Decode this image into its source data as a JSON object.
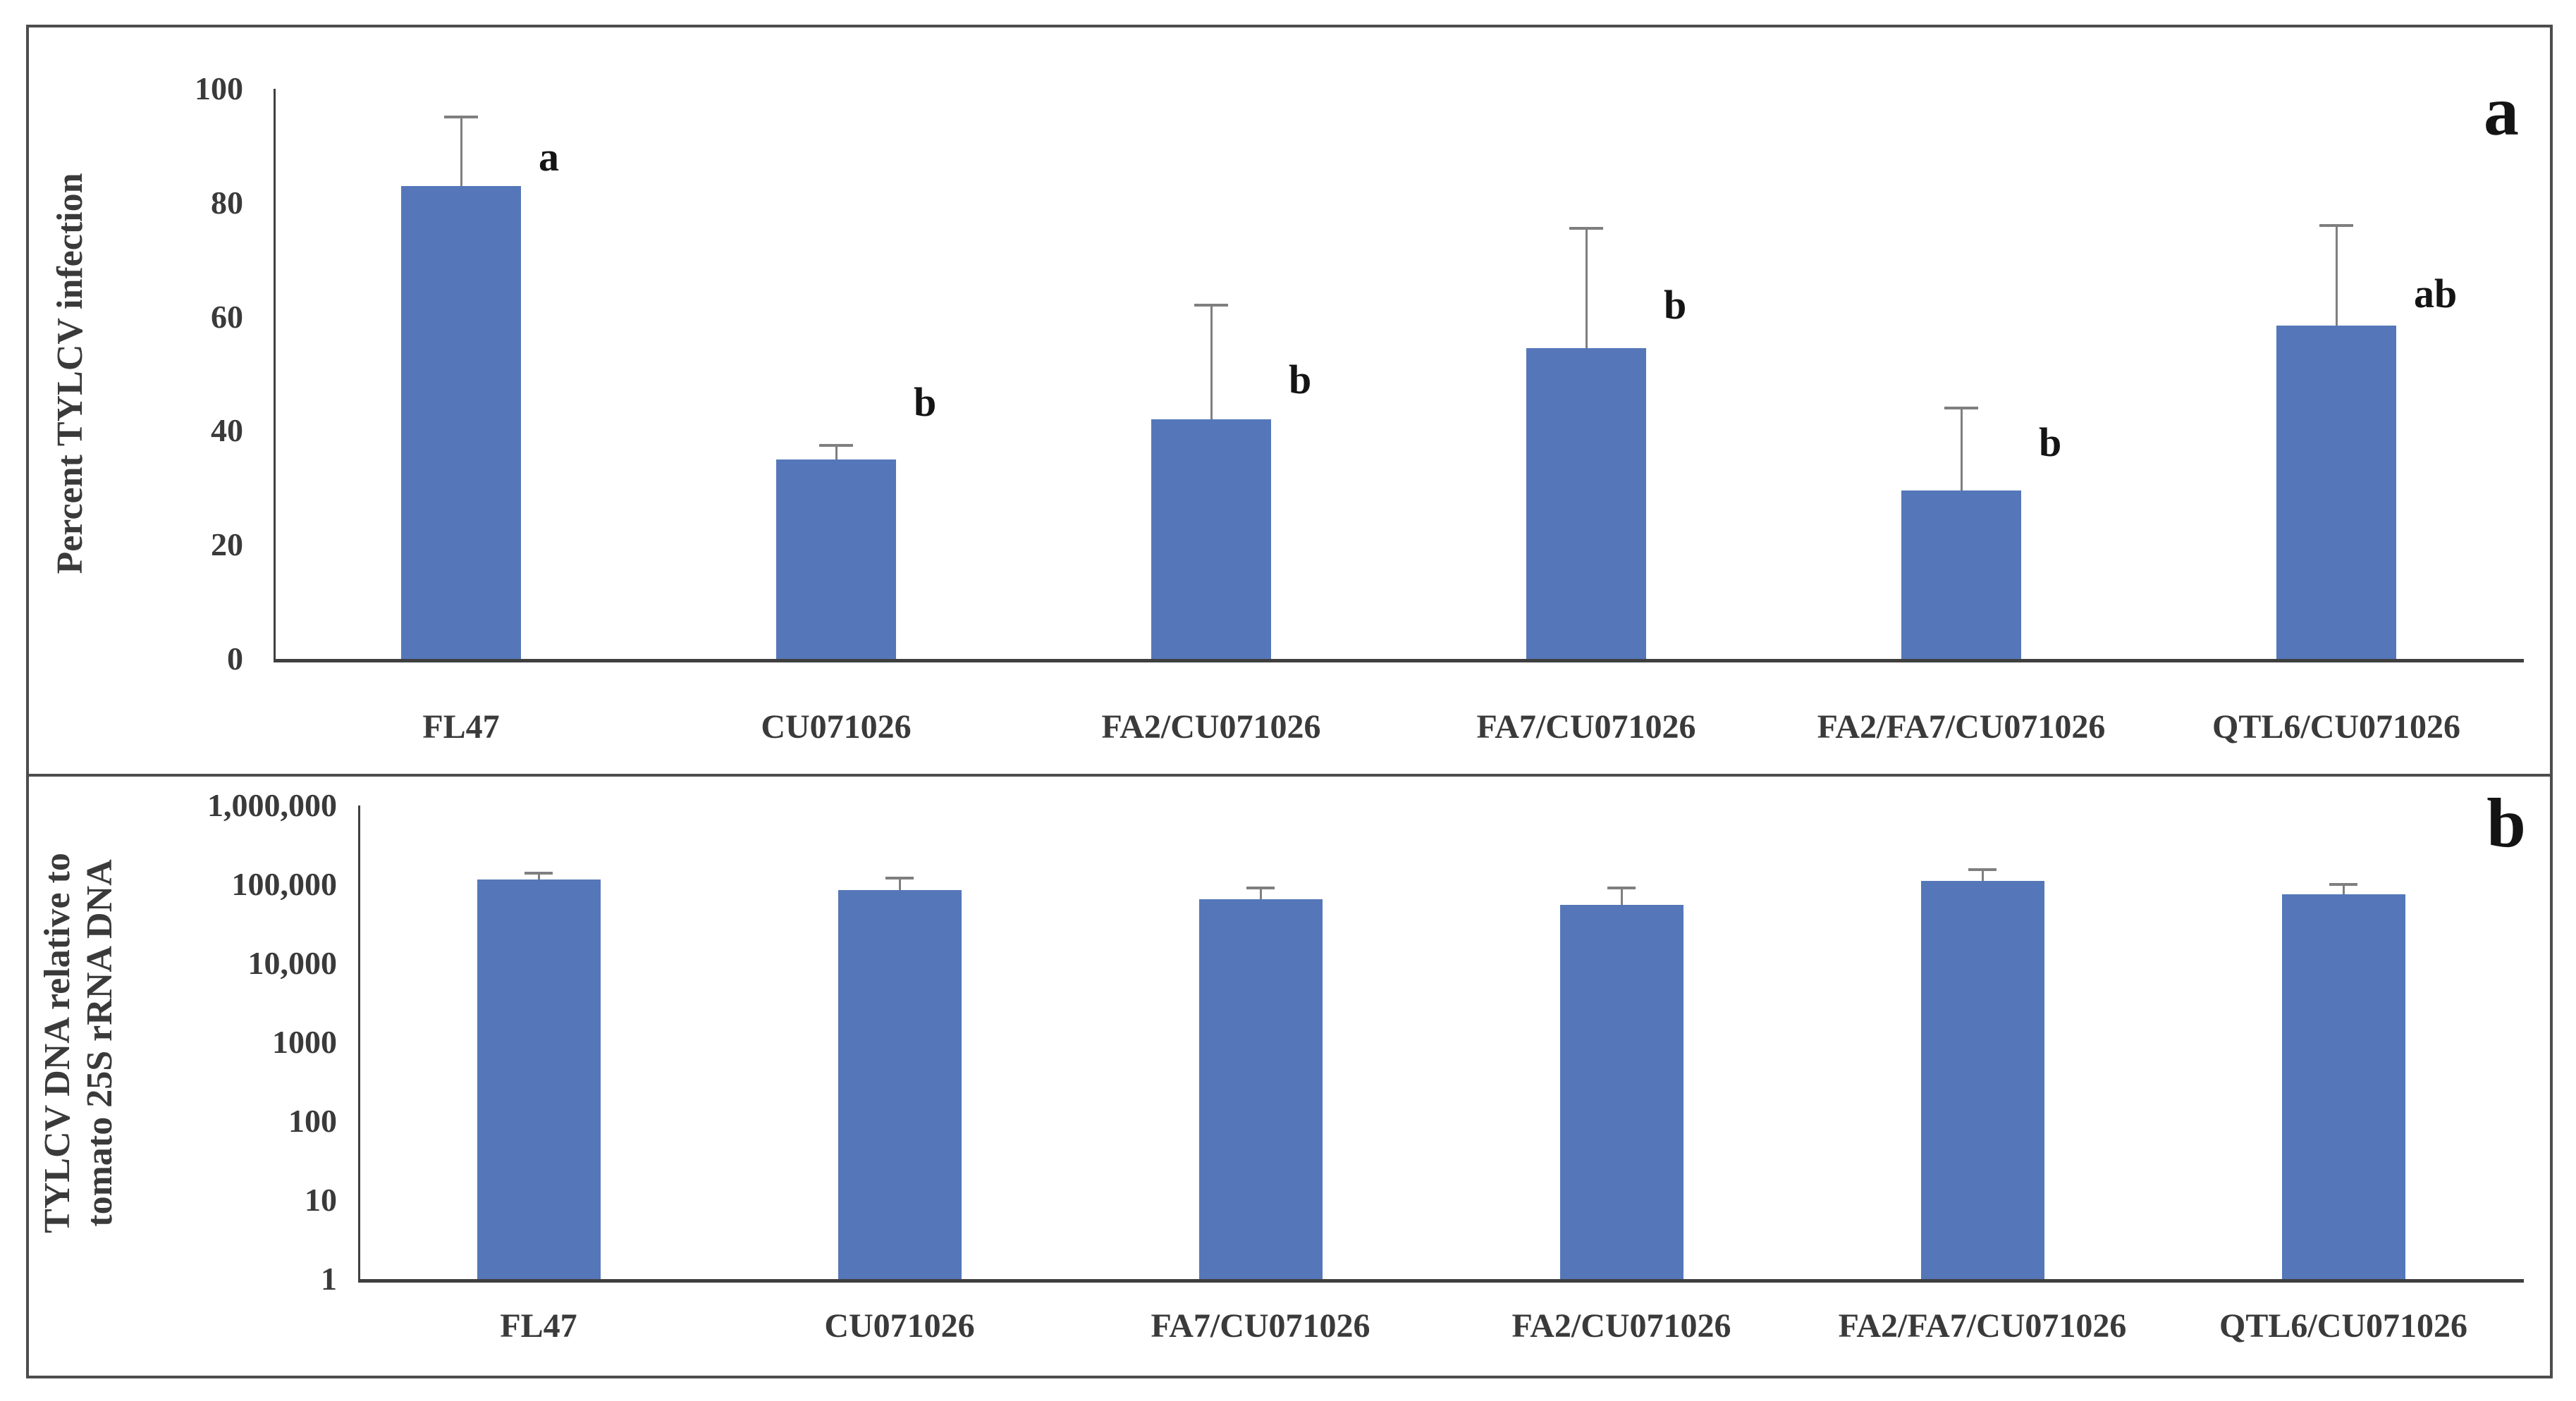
{
  "colors": {
    "bar": "#5577B9",
    "error_bar": "#7F7F7F",
    "axis": "#3F3F3F",
    "text": "#3A3A3A",
    "sig_letter": "#141414",
    "frame_border": "#4D4D4D",
    "background": "#FFFFFF"
  },
  "chart_data": [
    {
      "type": "bar",
      "panel_label": "a",
      "title": "",
      "ylabel": "Percent TYLCV infection",
      "xlabel": "",
      "yscale": "linear",
      "ylim": [
        0,
        100
      ],
      "yticks": [
        100,
        80,
        60,
        40,
        20,
        0
      ],
      "ytick_labels": [
        "100",
        "80",
        "60",
        "40",
        "20",
        "0"
      ],
      "grid": false,
      "legend": null,
      "categories": [
        "FL47",
        "CU071026",
        "FA2/CU071026",
        "FA7/CU071026",
        "FA2/FA7/CU071026",
        "QTL6/CU071026"
      ],
      "values": [
        83,
        35,
        42,
        54.5,
        29.5,
        58.5
      ],
      "error_upper": [
        95,
        37.5,
        62,
        75.5,
        44,
        76
      ],
      "sig_letters": [
        "a",
        "b",
        "b",
        "b",
        "b",
        "ab"
      ],
      "sig_letter_levels": [
        88,
        45,
        49,
        62,
        38,
        64
      ]
    },
    {
      "type": "bar",
      "panel_label": "b",
      "title": "",
      "ylabel_lines": [
        "TYLCV DNA relative to",
        "tomato 25S rRNA DNA"
      ],
      "xlabel": "",
      "yscale": "log",
      "ylim": [
        1,
        1000000
      ],
      "yticks": [
        1000000,
        100000,
        10000,
        1000,
        100,
        10,
        1
      ],
      "ytick_labels": [
        "1,000,000",
        "100,000",
        "10,000",
        "1000",
        "100",
        "10",
        "1"
      ],
      "grid": false,
      "legend": null,
      "categories": [
        "FL47",
        "CU071026",
        "FA7/CU071026",
        "FA2/CU071026",
        "FA2/FA7/CU071026",
        "QTL6/CU071026"
      ],
      "values": [
        115000,
        85000,
        65000,
        55000,
        110000,
        75000
      ],
      "error_upper": [
        140000,
        120000,
        90000,
        90000,
        155000,
        100000
      ],
      "sig_letters": [
        "",
        "",
        "",
        "",
        "",
        ""
      ],
      "sig_letter_levels": []
    }
  ]
}
